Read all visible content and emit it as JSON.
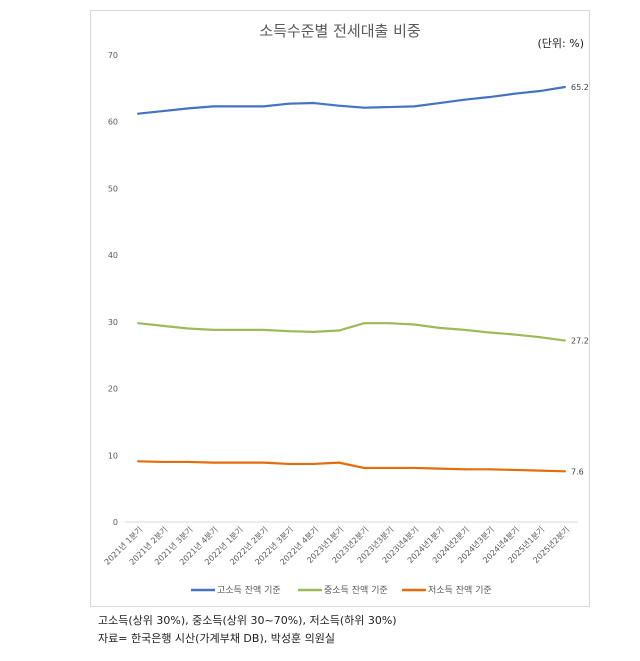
{
  "chart_data": {
    "type": "line",
    "title": "소득수준별 전세대출 비중",
    "unit_label": "(단위: %)",
    "categories": [
      "2021년 1분기",
      "2021년 2분기",
      "2021년 3분기",
      "2021년 4분기",
      "2022년 1분기",
      "2022년 2분기",
      "2022년 3분기",
      "2022년 4분기",
      "2023년1분기",
      "2023년2분기",
      "2023년3분기",
      "2023년4분기",
      "2024년1분기",
      "2024년2분기",
      "2024년3분기",
      "2024년4분기",
      "2025년1분기",
      "2025년2분기"
    ],
    "ylim": [
      0,
      70
    ],
    "yticks": [
      0,
      10,
      20,
      30,
      40,
      50,
      60,
      70
    ],
    "grid": false,
    "legend": "bottom",
    "series": [
      {
        "name": "고소득 잔액 기준",
        "color": "#4472c4",
        "end_label": "65.2",
        "values": [
          61.2,
          61.6,
          62.0,
          62.3,
          62.3,
          62.3,
          62.7,
          62.8,
          62.4,
          62.1,
          62.2,
          62.3,
          62.8,
          63.3,
          63.7,
          64.2,
          64.6,
          65.2
        ]
      },
      {
        "name": "중소득 잔액 기준",
        "color": "#9bbb59",
        "end_label": "27.2",
        "values": [
          29.8,
          29.4,
          29.0,
          28.8,
          28.8,
          28.8,
          28.6,
          28.5,
          28.7,
          29.8,
          29.8,
          29.6,
          29.1,
          28.8,
          28.4,
          28.1,
          27.7,
          27.2
        ]
      },
      {
        "name": "저소득 잔액 기준",
        "color": "#e46c0a",
        "end_label": "7.6",
        "values": [
          9.1,
          9.0,
          9.0,
          8.9,
          8.9,
          8.9,
          8.7,
          8.7,
          8.9,
          8.1,
          8.1,
          8.1,
          8.0,
          7.9,
          7.9,
          7.8,
          7.7,
          7.6
        ]
      }
    ]
  },
  "notes": {
    "line1": "고소득(상위 30%), 중소득(상위 30~70%), 저소득(하위 30%)",
    "line2": "자료= 한국은행 시산(가계부채 DB), 박성훈 의원실"
  }
}
